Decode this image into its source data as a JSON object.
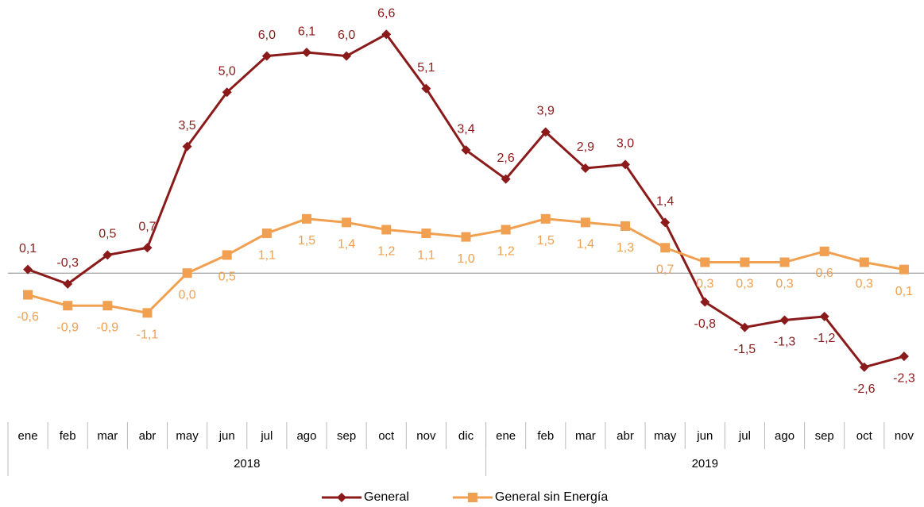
{
  "chart_data": {
    "type": "line",
    "categories": [
      "ene",
      "feb",
      "mar",
      "abr",
      "may",
      "jun",
      "jul",
      "ago",
      "sep",
      "oct",
      "nov",
      "dic",
      "ene",
      "feb",
      "mar",
      "abr",
      "may",
      "jun",
      "jul",
      "ago",
      "sep",
      "oct",
      "nov"
    ],
    "groups": [
      {
        "name": "2018",
        "count": 12
      },
      {
        "name": "2019",
        "count": 11
      }
    ],
    "ylim": [
      -3,
      7
    ],
    "series": [
      {
        "name": "General",
        "color": "#8b1a1a",
        "marker": "diamond",
        "values": [
          0.1,
          -0.3,
          0.5,
          0.7,
          3.5,
          5.0,
          6.0,
          6.1,
          6.0,
          6.6,
          5.1,
          3.4,
          2.6,
          3.9,
          2.9,
          3.0,
          1.4,
          -0.8,
          -1.5,
          -1.3,
          -1.2,
          -2.6,
          -2.3
        ],
        "value_labels": [
          "0,1",
          "-0,3",
          "0,5",
          "0,7",
          "3,5",
          "5,0",
          "6,0",
          "6,1",
          "6,0",
          "6,6",
          "5,1",
          "3,4",
          "2,6",
          "3,9",
          "2,9",
          "3,0",
          "1,4",
          "-0,8",
          "-1,5",
          "-1,3",
          "-1,2",
          "-2,6",
          "-2,3"
        ]
      },
      {
        "name": "General sin Energía",
        "color": "#f0a050",
        "marker": "square",
        "values": [
          -0.6,
          -0.9,
          -0.9,
          -1.1,
          0.0,
          0.5,
          1.1,
          1.5,
          1.4,
          1.2,
          1.1,
          1.0,
          1.2,
          1.5,
          1.4,
          1.3,
          0.7,
          0.3,
          0.3,
          0.3,
          0.6,
          0.3,
          0.1
        ],
        "value_labels": [
          "-0,6",
          "-0,9",
          "-0,9",
          "-1,1",
          "0,0",
          "0,5",
          "1,1",
          "1,5",
          "1,4",
          "1,2",
          "1,1",
          "1,0",
          "1,2",
          "1,5",
          "1,4",
          "1,3",
          "0,7",
          "0,3",
          "0,3",
          "0,3",
          "0,6",
          "0,3",
          "0,1"
        ]
      }
    ]
  }
}
